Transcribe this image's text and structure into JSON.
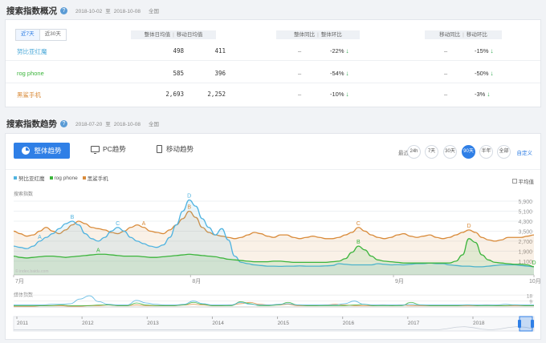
{
  "overview": {
    "title": "搜索指数概况",
    "date_start": "2018-10-02",
    "date_sep": "至",
    "date_end": "2018-10-08",
    "region": "全国",
    "tabs": [
      "近7天",
      "近30天"
    ],
    "headers": {
      "avg": "整体日均值",
      "mobile_avg": "移动日均值",
      "yoy": "整体同比",
      "mom": "整体环比",
      "mobile_yoy": "移动同比",
      "mobile_mom": "移动环比"
    },
    "rows": [
      {
        "name": "努比亚红魔",
        "avg": "498",
        "mobile_avg": "411",
        "yoy": "–",
        "mom": "-22%",
        "mobile_yoy": "–",
        "mobile_mom": "-15%"
      },
      {
        "name": "rog phone",
        "avg": "585",
        "mobile_avg": "396",
        "yoy": "–",
        "mom": "-54%",
        "mobile_yoy": "–",
        "mobile_mom": "-50%"
      },
      {
        "name": "黑鲨手机",
        "avg": "2,693",
        "mobile_avg": "2,252",
        "yoy": "–",
        "mom": "-10%",
        "mobile_yoy": "–",
        "mobile_mom": "-3%"
      }
    ]
  },
  "trend": {
    "title": "搜索指数趋势",
    "date_start": "2018-07-20",
    "date_sep": "至",
    "date_end": "2018-10-08",
    "region": "全国",
    "buttons": {
      "overall": "整体趋势",
      "pc": "PC趋势",
      "mobile": "移动趋势"
    },
    "range_label": "最近",
    "ranges": [
      "24h",
      "7天",
      "30天",
      "90天",
      "半年",
      "全部"
    ],
    "active_range": "90天",
    "custom": "自定义",
    "avg_label": "平均值",
    "search_label": "搜索指数",
    "media_label": "媒体指数",
    "watermark": "© index.baidu.com"
  },
  "chart_data": {
    "type": "line",
    "ylim": [
      0,
      6800
    ],
    "y_ticks": [
      "5,900",
      "5,100",
      "4,300",
      "3,500",
      "2,700",
      "1,900",
      "1,100"
    ],
    "x_ticks": [
      "7月",
      "8月",
      "9月",
      "10月"
    ],
    "colors": {
      "nubia": "#4fb3e0",
      "rog": "#3cb53c",
      "heisha": "#d98b3a"
    },
    "series": [
      {
        "name": "努比亚红魔",
        "key": "nubia",
        "values": [
          2300,
          2200,
          2100,
          2300,
          2700,
          3000,
          3300,
          3700,
          4100,
          4300,
          4000,
          3300,
          2900,
          2700,
          3000,
          3500,
          3800,
          3500,
          3000,
          2700,
          2500,
          2300,
          2200,
          2400,
          3000,
          4000,
          5100,
          6000,
          5500,
          4500,
          3800,
          3200,
          3700,
          2800,
          1500,
          1000,
          900,
          800,
          750,
          700,
          700,
          680,
          700,
          700,
          720,
          700,
          700,
          700,
          720,
          750,
          900,
          850,
          800,
          800,
          800,
          800,
          900,
          850,
          800,
          820,
          800,
          850,
          900,
          900,
          950,
          900,
          900,
          800,
          750,
          700,
          700,
          650,
          650,
          700,
          750,
          800,
          800,
          800,
          750,
          700,
          650
        ]
      },
      {
        "name": "rog phone",
        "key": "rog",
        "values": [
          1500,
          1400,
          1350,
          1400,
          1450,
          1500,
          1500,
          1450,
          1400,
          1450,
          1500,
          1550,
          1600,
          1650,
          1650,
          1600,
          1550,
          1500,
          1500,
          1500,
          1450,
          1400,
          1400,
          1450,
          1500,
          1550,
          1600,
          1650,
          1600,
          1550,
          1500,
          1450,
          1350,
          1250,
          1200,
          1150,
          1100,
          1050,
          1050,
          1050,
          1100,
          1100,
          1050,
          1000,
          1000,
          1000,
          1000,
          1000,
          1000,
          1050,
          1100,
          1300,
          1800,
          2300,
          2000,
          1500,
          1200,
          1100,
          1050,
          1000,
          950,
          950,
          950,
          950,
          950,
          950,
          950,
          950,
          1100,
          1600,
          2900,
          2600,
          1600,
          1200,
          1000,
          950,
          900,
          850,
          850,
          800,
          650
        ]
      },
      {
        "name": "黑鲨手机",
        "key": "heisha",
        "values": [
          3500,
          3300,
          3100,
          3200,
          3500,
          3800,
          3500,
          3300,
          3600,
          4000,
          4300,
          4100,
          3800,
          3700,
          3600,
          3400,
          3300,
          3500,
          3800,
          4000,
          3800,
          3500,
          3400,
          3300,
          3600,
          4000,
          4500,
          5100,
          4600,
          3800,
          3400,
          3200,
          3100,
          3000,
          2900,
          3000,
          3200,
          3400,
          3300,
          3100,
          3000,
          3200,
          3200,
          3000,
          2900,
          3000,
          3100,
          3000,
          2900,
          2900,
          3000,
          3200,
          3400,
          3800,
          3500,
          3200,
          3000,
          2900,
          3000,
          3200,
          3300,
          3100,
          3000,
          3100,
          3200,
          3000,
          2900,
          3000,
          3200,
          3400,
          3600,
          3400,
          3000,
          2800,
          2700,
          2800,
          3000,
          3000,
          3000,
          3100,
          3200
        ]
      }
    ],
    "peaks": [
      {
        "series": "nubia",
        "label": "A",
        "index": 4
      },
      {
        "series": "nubia",
        "label": "B",
        "index": 9
      },
      {
        "series": "nubia",
        "label": "C",
        "index": 16
      },
      {
        "series": "nubia",
        "label": "D",
        "index": 27
      },
      {
        "series": "rog",
        "label": "A",
        "index": 13
      },
      {
        "series": "rog",
        "label": "B",
        "index": 53
      },
      {
        "series": "rog",
        "label": "D",
        "index": 80
      },
      {
        "series": "heisha",
        "label": "A",
        "index": 20
      },
      {
        "series": "heisha",
        "label": "B",
        "index": 27
      },
      {
        "series": "heisha",
        "label": "C",
        "index": 53
      },
      {
        "series": "heisha",
        "label": "D",
        "index": 70
      }
    ],
    "media": {
      "y_ticks": [
        "18",
        "9"
      ],
      "ylim": [
        0,
        22
      ],
      "nubia": [
        3,
        3,
        3,
        3,
        4,
        4,
        5,
        12,
        17,
        8,
        4,
        3,
        3,
        10,
        6,
        4,
        3,
        3,
        4,
        9,
        5,
        3,
        3,
        3,
        7,
        4,
        3,
        3,
        4,
        5,
        3,
        3,
        3,
        3,
        3,
        5,
        9,
        4,
        3,
        3,
        3,
        3,
        4,
        3,
        3,
        3,
        3,
        3,
        3,
        3,
        3,
        3,
        4,
        3,
        3,
        3
      ],
      "rog": [
        2,
        2,
        2,
        2,
        2,
        3,
        2,
        2,
        2,
        3,
        3,
        2,
        2,
        6,
        3,
        2,
        2,
        2,
        3,
        7,
        4,
        2,
        2,
        2,
        8,
        5,
        2,
        2,
        3,
        7,
        3,
        2,
        2,
        2,
        2,
        2,
        3,
        4,
        2,
        2,
        2,
        2,
        7,
        3,
        2,
        2,
        2,
        2,
        3,
        2,
        2,
        2,
        2,
        3,
        2,
        2
      ],
      "heisha": [
        1,
        1,
        1,
        2,
        2,
        2,
        1,
        1,
        2,
        2,
        3,
        2,
        2,
        3,
        2,
        2,
        2,
        2,
        3,
        4,
        3,
        2,
        2,
        3,
        5,
        7,
        4,
        3,
        3,
        4,
        2,
        2,
        2,
        3,
        4,
        3,
        2,
        2,
        2,
        3,
        2,
        3,
        2,
        2,
        2,
        2,
        2,
        2,
        2,
        2,
        3,
        2,
        2,
        2,
        2,
        2
      ]
    },
    "timeline": [
      "2011",
      "2012",
      "2013",
      "2014",
      "2015",
      "2016",
      "2017",
      "2018"
    ]
  }
}
